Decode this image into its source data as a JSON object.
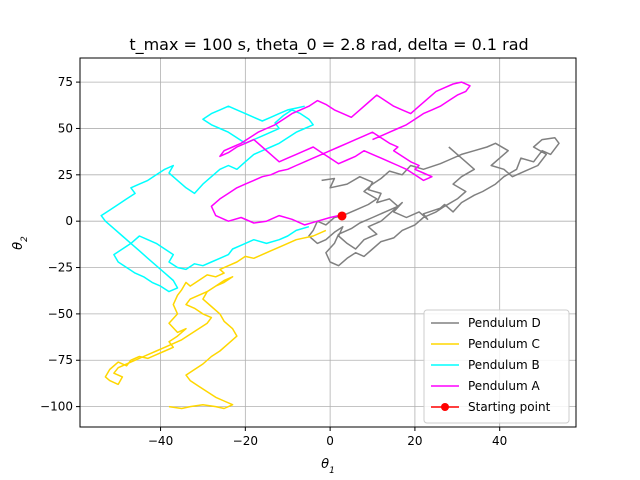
{
  "chart_data": {
    "type": "line",
    "title": "t_max = 100 s, theta_0 = 2.8 rad, delta = 0.1 rad",
    "xlabel": "θ",
    "xlabel_sub": "1",
    "ylabel": "θ",
    "ylabel_sub": "2",
    "xlim": [
      -59,
      58
    ],
    "ylim": [
      -111,
      88
    ],
    "xticks": [
      -40,
      -20,
      0,
      20,
      40
    ],
    "yticks": [
      -100,
      -75,
      -50,
      -25,
      0,
      25,
      50,
      75
    ],
    "xtick_labels": [
      "−40",
      "−20",
      "0",
      "20",
      "40"
    ],
    "ytick_labels": [
      "−100",
      "−75",
      "−50",
      "−25",
      "0",
      "25",
      "50",
      "75"
    ],
    "grid": true,
    "legend_position": "lower-right",
    "series": [
      {
        "name": "Pendulum D",
        "color": "#808080",
        "x": [
          -2,
          1,
          0,
          4,
          7,
          10,
          9,
          12,
          11,
          14,
          16,
          17,
          15,
          18,
          21,
          23,
          22,
          26,
          27,
          29,
          31,
          34,
          36,
          39,
          41,
          44,
          45,
          48,
          50,
          52,
          54,
          53,
          50,
          48,
          51,
          49,
          46,
          43,
          41,
          38,
          40,
          42,
          39,
          37,
          34,
          31,
          28,
          26,
          22,
          19,
          17,
          14,
          12,
          10,
          8,
          11,
          9,
          6,
          3,
          1,
          -1,
          -3,
          -4,
          -5,
          -3,
          -1,
          1,
          3,
          2,
          4,
          6,
          8,
          11,
          9,
          12,
          14,
          16,
          13,
          10,
          7,
          5,
          2,
          1,
          -1,
          0,
          2,
          4,
          6,
          8,
          10,
          12,
          15,
          17,
          20,
          22,
          25,
          27,
          30,
          32,
          29,
          31,
          34,
          32,
          30,
          28
        ],
        "y": [
          22,
          23,
          18,
          20,
          24,
          21,
          17,
          15,
          10,
          12,
          8,
          10,
          5,
          2,
          5,
          1,
          4,
          7,
          9,
          5,
          10,
          14,
          16,
          20,
          24,
          28,
          34,
          32,
          38,
          36,
          42,
          45,
          44,
          40,
          36,
          30,
          27,
          24,
          28,
          30,
          34,
          38,
          42,
          40,
          38,
          36,
          33,
          31,
          28,
          30,
          25,
          27,
          23,
          20,
          16,
          12,
          9,
          6,
          3,
          2,
          -2,
          0,
          -5,
          -8,
          -12,
          -10,
          -6,
          -3,
          -8,
          -12,
          -15,
          -10,
          -7,
          -3,
          0,
          4,
          8,
          5,
          2,
          -1,
          -4,
          -7,
          -12,
          -17,
          -22,
          -24,
          -20,
          -17,
          -19,
          -15,
          -11,
          -9,
          -5,
          -2,
          2,
          5,
          8,
          12,
          16,
          20,
          24,
          28,
          32,
          36,
          40
        ]
      },
      {
        "name": "Pendulum C",
        "color": "#ffd700",
        "x": [
          -1,
          -4,
          -8,
          -11,
          -14,
          -16,
          -18,
          -20,
          -22,
          -24,
          -26,
          -25,
          -27,
          -29,
          -31,
          -33,
          -34,
          -35,
          -36,
          -37,
          -36,
          -38,
          -36,
          -34,
          -36,
          -38,
          -37,
          -39,
          -41,
          -43,
          -45,
          -47,
          -48,
          -50,
          -52,
          -53,
          -52,
          -50,
          -49,
          -51,
          -50,
          -47,
          -44,
          -41,
          -39,
          -37,
          -35,
          -33,
          -31,
          -29,
          -28,
          -30,
          -32,
          -34,
          -33,
          -31,
          -29,
          -27,
          -25,
          -23,
          -25,
          -27,
          -29,
          -30,
          -28,
          -26,
          -25,
          -23,
          -22,
          -24,
          -26,
          -28,
          -30,
          -32,
          -34,
          -33,
          -31,
          -29,
          -27,
          -25,
          -23,
          -25,
          -27,
          -30,
          -33,
          -35,
          -38
        ],
        "y": [
          -5,
          -8,
          -10,
          -13,
          -16,
          -18,
          -20,
          -19,
          -22,
          -24,
          -26,
          -28,
          -30,
          -29,
          -32,
          -35,
          -33,
          -37,
          -40,
          -45,
          -50,
          -55,
          -60,
          -58,
          -62,
          -65,
          -68,
          -70,
          -72,
          -74,
          -73,
          -75,
          -78,
          -76,
          -80,
          -84,
          -86,
          -88,
          -84,
          -82,
          -79,
          -76,
          -73,
          -70,
          -68,
          -66,
          -64,
          -61,
          -58,
          -55,
          -52,
          -50,
          -47,
          -45,
          -42,
          -40,
          -38,
          -35,
          -33,
          -30,
          -32,
          -35,
          -38,
          -42,
          -46,
          -50,
          -54,
          -58,
          -62,
          -66,
          -70,
          -73,
          -77,
          -80,
          -83,
          -86,
          -89,
          -92,
          -95,
          -97,
          -99,
          -101,
          -100,
          -99,
          -100,
          -101,
          -100
        ]
      },
      {
        "name": "Pendulum B",
        "color": "#00ffff",
        "x": [
          -5,
          -8,
          -10,
          -12,
          -15,
          -18,
          -21,
          -23,
          -24,
          -26,
          -28,
          -30,
          -32,
          -34,
          -36,
          -38,
          -37,
          -39,
          -41,
          -43,
          -45,
          -47,
          -49,
          -51,
          -50,
          -48,
          -46,
          -44,
          -42,
          -40,
          -38,
          -36,
          -37,
          -39,
          -41,
          -43,
          -45,
          -47,
          -49,
          -51,
          -53,
          -54,
          -52,
          -50,
          -48,
          -46,
          -47,
          -45,
          -43,
          -41,
          -39,
          -37,
          -38,
          -36,
          -34,
          -32,
          -30,
          -28,
          -26,
          -24,
          -22,
          -20,
          -18,
          -16,
          -14,
          -12,
          -10,
          -8,
          -6,
          -4,
          -5,
          -7,
          -9,
          -11,
          -13,
          -12,
          -14,
          -16,
          -18,
          -20,
          -22,
          -24,
          -26,
          -28,
          -30,
          -28,
          -26,
          -24,
          -22,
          -20,
          -18,
          -16,
          -14,
          -12,
          -10,
          -8,
          -6
        ],
        "y": [
          -3,
          -5,
          -8,
          -10,
          -12,
          -10,
          -13,
          -15,
          -18,
          -20,
          -22,
          -24,
          -23,
          -26,
          -25,
          -22,
          -18,
          -15,
          -12,
          -10,
          -8,
          -12,
          -15,
          -18,
          -22,
          -25,
          -28,
          -30,
          -33,
          -35,
          -38,
          -36,
          -32,
          -28,
          -24,
          -20,
          -16,
          -12,
          -8,
          -4,
          0,
          3,
          6,
          9,
          12,
          15,
          18,
          20,
          22,
          25,
          28,
          30,
          26,
          22,
          18,
          15,
          20,
          24,
          28,
          30,
          28,
          32,
          36,
          38,
          40,
          42,
          45,
          48,
          50,
          52,
          55,
          58,
          60,
          57,
          53,
          50,
          48,
          46,
          44,
          42,
          45,
          48,
          50,
          52,
          55,
          58,
          60,
          62,
          60,
          58,
          56,
          54,
          56,
          58,
          60,
          61,
          62
        ]
      },
      {
        "name": "Pendulum A",
        "color": "#ff00ff",
        "x": [
          2,
          0,
          -3,
          -6,
          -9,
          -12,
          -15,
          -18,
          -21,
          -24,
          -27,
          -28,
          -26,
          -24,
          -22,
          -20,
          -18,
          -16,
          -14,
          -12,
          -10,
          -8,
          -6,
          -4,
          -2,
          0,
          2,
          4,
          6,
          8,
          10,
          12,
          14,
          16,
          15,
          17,
          19,
          21,
          20,
          22,
          24,
          22,
          20,
          18,
          16,
          14,
          12,
          10,
          8,
          6,
          4,
          2,
          0,
          -2,
          -4,
          -6,
          -8,
          -10,
          -12,
          -14,
          -16,
          -18,
          -20,
          -22,
          -24,
          -26,
          -25,
          -23,
          -21,
          -19,
          -17,
          -15,
          -13,
          -11,
          -9,
          -7,
          -5,
          -3,
          -1,
          1,
          3,
          5,
          7,
          9,
          11,
          13,
          15,
          17,
          19,
          21,
          23,
          25,
          27,
          29,
          31,
          33,
          32,
          30,
          28,
          26,
          24,
          22,
          20,
          18,
          16,
          14,
          12,
          10
        ],
        "y": [
          3,
          2,
          0,
          -2,
          1,
          3,
          0,
          -1,
          2,
          0,
          3,
          8,
          12,
          15,
          18,
          20,
          22,
          24,
          25,
          27,
          28,
          30,
          32,
          34,
          36,
          38,
          40,
          42,
          44,
          46,
          48,
          45,
          42,
          40,
          38,
          35,
          32,
          30,
          28,
          26,
          24,
          22,
          25,
          28,
          30,
          32,
          34,
          36,
          38,
          35,
          33,
          31,
          34,
          37,
          40,
          38,
          36,
          34,
          32,
          36,
          40,
          44,
          42,
          40,
          37,
          35,
          38,
          40,
          42,
          45,
          48,
          50,
          52,
          55,
          58,
          60,
          62,
          65,
          63,
          60,
          58,
          56,
          60,
          64,
          68,
          65,
          62,
          60,
          58,
          62,
          66,
          70,
          72,
          74,
          75,
          73,
          70,
          68,
          65,
          62,
          60,
          58,
          55,
          52,
          50,
          48,
          46,
          44
        ]
      }
    ],
    "start_point": {
      "name": "Starting point",
      "x": 2.8,
      "y": 2.8,
      "color": "#ff0000"
    }
  }
}
